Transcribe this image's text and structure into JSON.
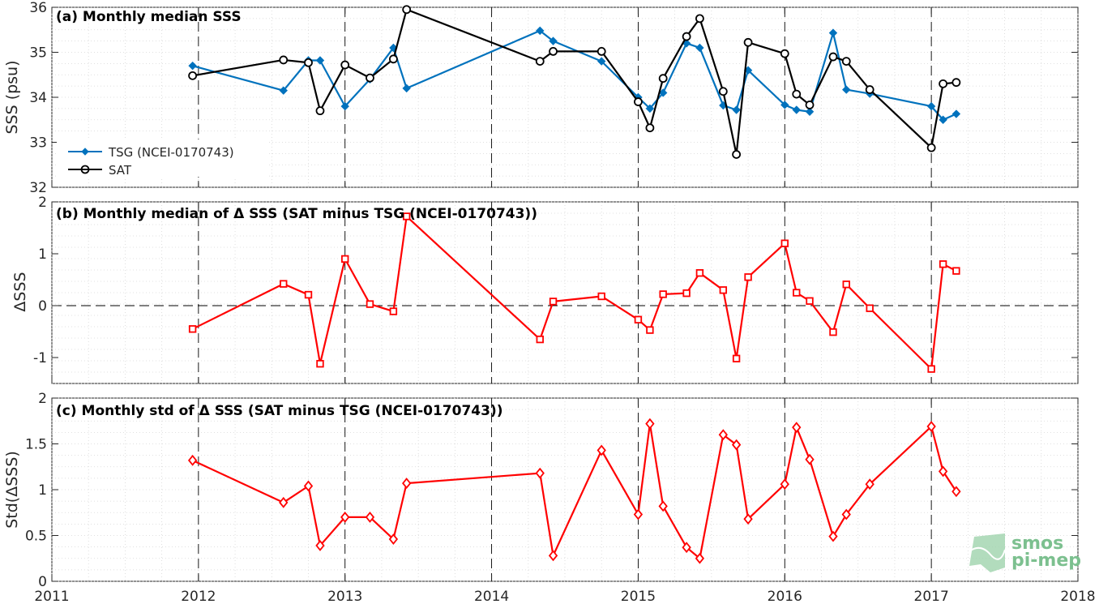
{
  "colors": {
    "tsg": "#0072BD",
    "sat": "#000000",
    "delta": "#FF0000"
  },
  "x_ticks": [
    "2011",
    "2012",
    "2013",
    "2014",
    "2015",
    "2016",
    "2017",
    "2018"
  ],
  "x_years": [
    2011,
    2012,
    2013,
    2014,
    2015,
    2016,
    2017,
    2018
  ],
  "logo": {
    "line1": "smos",
    "line2": "pi-mep"
  },
  "chart_data": [
    {
      "type": "line",
      "title": "(a) Monthly median SSS",
      "ylabel": "SSS (psu)",
      "xlim": [
        2011,
        2018
      ],
      "ylim": [
        32,
        36
      ],
      "yticks": [
        "32",
        "33",
        "34",
        "35",
        "36"
      ],
      "ytick_values": [
        32,
        33,
        34,
        35,
        36
      ],
      "legend_position": "bottom-left",
      "series": [
        {
          "name": "TSG (NCEI-0170743)",
          "marker": "diamond-filled",
          "color": "#0072BD",
          "points": [
            [
              2011.96,
              34.7
            ],
            [
              2012.58,
              34.15
            ],
            [
              2012.75,
              34.82
            ],
            [
              2012.83,
              34.82
            ],
            [
              2013.0,
              33.8
            ],
            [
              2013.17,
              34.4
            ],
            [
              2013.33,
              35.1
            ],
            [
              2013.42,
              34.2
            ],
            [
              2014.33,
              35.48
            ],
            [
              2014.42,
              35.25
            ],
            [
              2014.75,
              34.8
            ],
            [
              2015.0,
              34.0
            ],
            [
              2015.08,
              33.75
            ],
            [
              2015.17,
              34.1
            ],
            [
              2015.33,
              35.2
            ],
            [
              2015.42,
              35.1
            ],
            [
              2015.58,
              33.82
            ],
            [
              2015.67,
              33.72
            ],
            [
              2015.75,
              34.6
            ],
            [
              2016.0,
              33.83
            ],
            [
              2016.08,
              33.72
            ],
            [
              2016.17,
              33.68
            ],
            [
              2016.33,
              35.43
            ],
            [
              2016.42,
              34.17
            ],
            [
              2016.58,
              34.08
            ],
            [
              2017.0,
              33.8
            ],
            [
              2017.08,
              33.5
            ],
            [
              2017.17,
              33.63
            ]
          ]
        },
        {
          "name": "SAT",
          "marker": "circle-open",
          "color": "#000000",
          "points": [
            [
              2011.96,
              34.48
            ],
            [
              2012.58,
              34.83
            ],
            [
              2012.75,
              34.77
            ],
            [
              2012.83,
              33.7
            ],
            [
              2013.0,
              34.72
            ],
            [
              2013.17,
              34.43
            ],
            [
              2013.33,
              34.85
            ],
            [
              2013.42,
              35.95
            ],
            [
              2014.33,
              34.8
            ],
            [
              2014.42,
              35.02
            ],
            [
              2014.75,
              35.02
            ],
            [
              2015.0,
              33.9
            ],
            [
              2015.08,
              33.32
            ],
            [
              2015.17,
              34.42
            ],
            [
              2015.33,
              35.35
            ],
            [
              2015.42,
              35.75
            ],
            [
              2015.58,
              34.13
            ],
            [
              2015.67,
              32.73
            ],
            [
              2015.75,
              35.22
            ],
            [
              2016.0,
              34.97
            ],
            [
              2016.08,
              34.07
            ],
            [
              2016.17,
              33.83
            ],
            [
              2016.33,
              34.9
            ],
            [
              2016.42,
              34.8
            ],
            [
              2016.58,
              34.17
            ],
            [
              2017.0,
              32.88
            ],
            [
              2017.08,
              34.3
            ],
            [
              2017.17,
              34.33
            ]
          ]
        }
      ]
    },
    {
      "type": "line",
      "title": "(b) Monthly median of Δ SSS (SAT minus TSG (NCEI-0170743))",
      "ylabel": "ΔSSS",
      "xlim": [
        2011,
        2018
      ],
      "ylim": [
        -1.5,
        2
      ],
      "yticks": [
        "-1",
        "0",
        "1",
        "2"
      ],
      "ytick_values": [
        -1,
        0,
        1,
        2
      ],
      "reference_line": 0,
      "series": [
        {
          "marker": "square-open",
          "color": "#FF0000",
          "points": [
            [
              2011.96,
              -0.45
            ],
            [
              2012.58,
              0.42
            ],
            [
              2012.75,
              0.21
            ],
            [
              2012.83,
              -1.12
            ],
            [
              2013.0,
              0.9
            ],
            [
              2013.17,
              0.03
            ],
            [
              2013.33,
              -0.11
            ],
            [
              2013.42,
              1.72
            ],
            [
              2014.33,
              -0.65
            ],
            [
              2014.42,
              0.08
            ],
            [
              2014.75,
              0.18
            ],
            [
              2015.0,
              -0.27
            ],
            [
              2015.08,
              -0.47
            ],
            [
              2015.17,
              0.22
            ],
            [
              2015.33,
              0.24
            ],
            [
              2015.42,
              0.63
            ],
            [
              2015.58,
              0.3
            ],
            [
              2015.67,
              -1.02
            ],
            [
              2015.75,
              0.55
            ],
            [
              2016.0,
              1.2
            ],
            [
              2016.08,
              0.25
            ],
            [
              2016.17,
              0.09
            ],
            [
              2016.33,
              -0.51
            ],
            [
              2016.42,
              0.41
            ],
            [
              2016.58,
              -0.05
            ],
            [
              2017.0,
              -1.22
            ],
            [
              2017.08,
              0.8
            ],
            [
              2017.17,
              0.67
            ]
          ]
        }
      ]
    },
    {
      "type": "line",
      "title": "(c) Monthly std of Δ SSS (SAT minus TSG (NCEI-0170743))",
      "ylabel": "Std(ΔSSS)",
      "xlim": [
        2011,
        2018
      ],
      "ylim": [
        0,
        2
      ],
      "yticks": [
        "0",
        "0.5",
        "1",
        "1.5",
        "2"
      ],
      "ytick_values": [
        0,
        0.5,
        1,
        1.5,
        2
      ],
      "series": [
        {
          "marker": "diamond-open",
          "color": "#FF0000",
          "points": [
            [
              2011.96,
              1.32
            ],
            [
              2012.58,
              0.86
            ],
            [
              2012.75,
              1.04
            ],
            [
              2012.83,
              0.39
            ],
            [
              2013.0,
              0.7
            ],
            [
              2013.17,
              0.7
            ],
            [
              2013.33,
              0.46
            ],
            [
              2013.42,
              1.07
            ],
            [
              2014.33,
              1.18
            ],
            [
              2014.42,
              0.28
            ],
            [
              2014.75,
              1.43
            ],
            [
              2015.0,
              0.73
            ],
            [
              2015.08,
              1.72
            ],
            [
              2015.17,
              0.82
            ],
            [
              2015.33,
              0.37
            ],
            [
              2015.42,
              0.25
            ],
            [
              2015.58,
              1.6
            ],
            [
              2015.67,
              1.49
            ],
            [
              2015.75,
              0.68
            ],
            [
              2016.0,
              1.06
            ],
            [
              2016.08,
              1.68
            ],
            [
              2016.17,
              1.33
            ],
            [
              2016.33,
              0.49
            ],
            [
              2016.42,
              0.73
            ],
            [
              2016.58,
              1.06
            ],
            [
              2017.0,
              1.69
            ],
            [
              2017.08,
              1.2
            ],
            [
              2017.17,
              0.98
            ]
          ]
        }
      ]
    }
  ]
}
